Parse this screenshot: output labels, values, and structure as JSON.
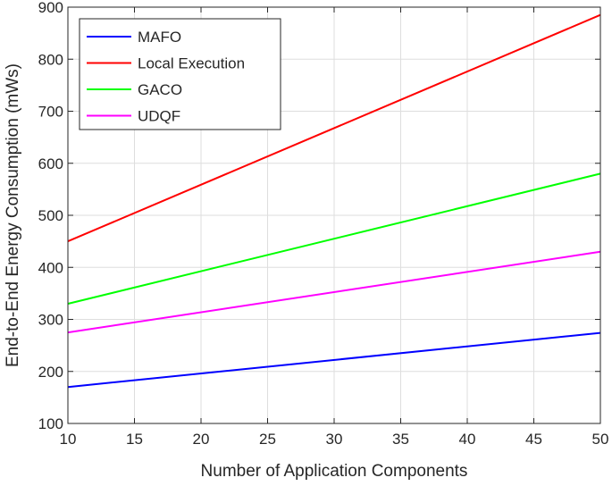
{
  "chart_data": {
    "type": "line",
    "title": "",
    "xlabel": "Number of Application Components",
    "ylabel": "End-to-End Energy Consumption (mWs)",
    "xlim": [
      10,
      50
    ],
    "ylim": [
      100,
      900
    ],
    "xticks": [
      10,
      15,
      20,
      25,
      30,
      35,
      40,
      45,
      50
    ],
    "yticks": [
      100,
      200,
      300,
      400,
      500,
      600,
      700,
      800,
      900
    ],
    "grid": true,
    "legend_position": "top-left",
    "series": [
      {
        "name": "MAFO",
        "color": "#0000ff",
        "x": [
          10,
          50
        ],
        "y": [
          170,
          274
        ]
      },
      {
        "name": "Local Execution",
        "color": "#ff0000",
        "x": [
          10,
          50
        ],
        "y": [
          450,
          885
        ]
      },
      {
        "name": "GACO",
        "color": "#00ff00",
        "x": [
          10,
          50
        ],
        "y": [
          330,
          580
        ]
      },
      {
        "name": "UDQF",
        "color": "#ff00ff",
        "x": [
          10,
          50
        ],
        "y": [
          275,
          430
        ]
      }
    ]
  }
}
